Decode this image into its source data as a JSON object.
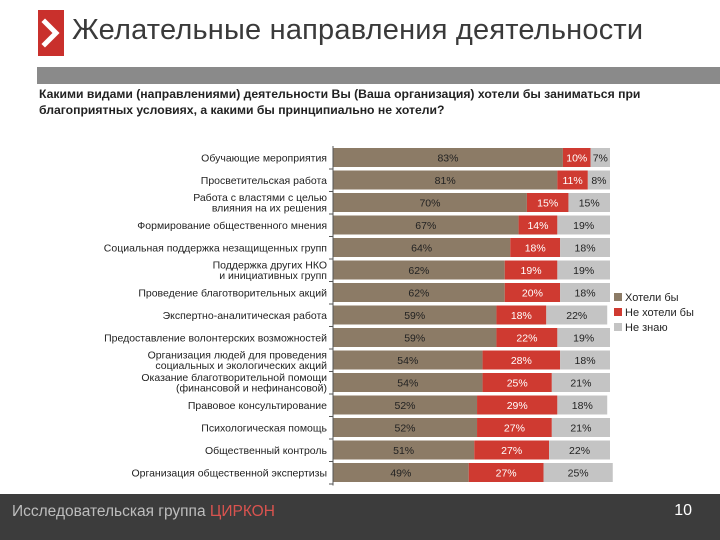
{
  "header": {
    "title": "Желательные направления деятельности",
    "question": "Какими видами (направлениями) деятельности Вы (Ваша организация) хотели бы заниматься при благоприятных условиях, а какими бы принципиально не хотели?"
  },
  "footer": {
    "brand_prefix": "Исследовательская группа ",
    "brand_name": "ЦИРКОН",
    "page_number": "10"
  },
  "colors": {
    "want": "#8c7b66",
    "not_want": "#cf3a31",
    "dont_know": "#c4c4c4",
    "accent": "#c9302c"
  },
  "chart_data": {
    "type": "bar",
    "orientation": "horizontal",
    "stacked": true,
    "xlim": [
      0,
      100
    ],
    "unit": "%",
    "legend_position": "right",
    "categories": [
      "Обучающие мероприятия",
      "Просветительская работа",
      "Работа с властями с целью влияния на их решения",
      "Формирование общественного мнения",
      "Социальная поддержка незащищенных групп",
      "Поддержка других НКО и инициативных групп",
      "Проведение благотворительных акций",
      "Экспертно-аналитическая работа",
      "Предоставление волонтерских возможностей",
      "Организация людей для проведения социальных и экологических акций",
      "Оказание благотворительной помощи (финансовой и нефинансовой)",
      "Правовое консультирование",
      "Психологическая помощь",
      "Общественный контроль",
      "Организация общественной экспертизы"
    ],
    "series": [
      {
        "name": "Хотели бы",
        "values": [
          83,
          81,
          70,
          67,
          64,
          62,
          62,
          59,
          59,
          54,
          54,
          52,
          52,
          51,
          49
        ]
      },
      {
        "name": "Не хотели бы",
        "values": [
          10,
          11,
          15,
          14,
          18,
          19,
          20,
          18,
          22,
          28,
          25,
          29,
          27,
          27,
          27
        ]
      },
      {
        "name": "Не знаю",
        "values": [
          7,
          8,
          15,
          19,
          18,
          19,
          18,
          22,
          19,
          18,
          21,
          18,
          21,
          22,
          25
        ]
      }
    ]
  }
}
